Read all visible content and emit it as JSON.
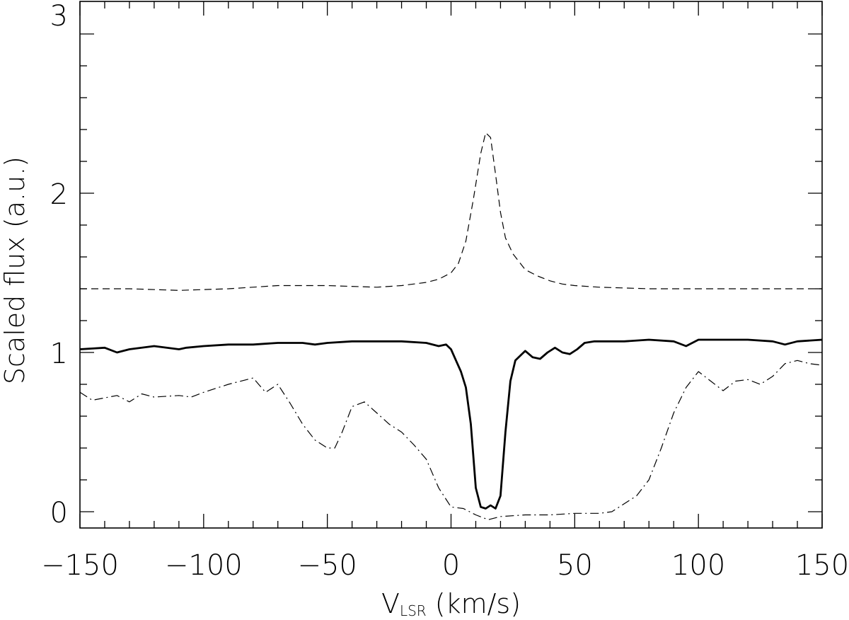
{
  "chart_data": {
    "type": "line",
    "xlabel": {
      "main": "V",
      "sub": "LSR",
      "unit": " (km/s)"
    },
    "ylabel": "Scaled flux (a.u.)",
    "xlim": [
      -150,
      150
    ],
    "ylim": [
      -0.1,
      3
    ],
    "xticks": [
      -150,
      -100,
      -50,
      0,
      50,
      100,
      150
    ],
    "xtick_labels": [
      "−150",
      "−100",
      "−50",
      "0",
      "50",
      "100",
      "150"
    ],
    "yticks": [
      0,
      1,
      2,
      3
    ],
    "ytick_labels": [
      "0",
      "1",
      "2",
      "3"
    ],
    "grid": false,
    "series": [
      {
        "style": "dashed",
        "x": [
          -150,
          -130,
          -110,
          -90,
          -70,
          -50,
          -30,
          -20,
          -10,
          -5,
          0,
          3,
          6,
          9,
          12,
          14,
          16,
          18,
          20,
          22,
          25,
          30,
          35,
          40,
          45,
          50,
          60,
          80,
          100,
          120,
          150
        ],
        "y": [
          1.4,
          1.4,
          1.39,
          1.4,
          1.42,
          1.42,
          1.41,
          1.42,
          1.44,
          1.46,
          1.5,
          1.56,
          1.7,
          1.96,
          2.25,
          2.38,
          2.35,
          2.12,
          1.88,
          1.72,
          1.62,
          1.52,
          1.48,
          1.45,
          1.43,
          1.42,
          1.41,
          1.4,
          1.4,
          1.4,
          1.4
        ]
      },
      {
        "style": "solid",
        "x": [
          -150,
          -140,
          -135,
          -130,
          -120,
          -110,
          -107,
          -100,
          -90,
          -80,
          -70,
          -60,
          -55,
          -50,
          -40,
          -30,
          -20,
          -10,
          -5,
          -2,
          0,
          2,
          4,
          6,
          8,
          10,
          12,
          14,
          16,
          18,
          20,
          22,
          24,
          26,
          30,
          33,
          36,
          39,
          42,
          45,
          48,
          51,
          54,
          58,
          70,
          80,
          90,
          95,
          100,
          110,
          120,
          130,
          135,
          140,
          150
        ],
        "y": [
          1.02,
          1.03,
          1.0,
          1.02,
          1.04,
          1.02,
          1.03,
          1.04,
          1.05,
          1.05,
          1.06,
          1.06,
          1.05,
          1.06,
          1.07,
          1.07,
          1.07,
          1.06,
          1.04,
          1.05,
          1.02,
          0.95,
          0.88,
          0.78,
          0.55,
          0.15,
          0.03,
          0.02,
          0.04,
          0.02,
          0.1,
          0.5,
          0.82,
          0.95,
          1.01,
          0.97,
          0.96,
          1.0,
          1.03,
          1.0,
          0.99,
          1.02,
          1.06,
          1.07,
          1.07,
          1.08,
          1.07,
          1.04,
          1.08,
          1.08,
          1.08,
          1.07,
          1.05,
          1.07,
          1.08
        ]
      },
      {
        "style": "dash-dot",
        "x": [
          -150,
          -145,
          -135,
          -130,
          -125,
          -120,
          -110,
          -105,
          -100,
          -90,
          -80,
          -75,
          -70,
          -65,
          -60,
          -55,
          -50,
          -47,
          -44,
          -40,
          -35,
          -30,
          -25,
          -20,
          -15,
          -10,
          -5,
          0,
          5,
          10,
          15,
          20,
          30,
          40,
          50,
          60,
          65,
          70,
          75,
          80,
          85,
          90,
          95,
          100,
          105,
          110,
          115,
          120,
          125,
          130,
          135,
          140,
          145,
          150
        ],
        "y": [
          0.75,
          0.7,
          0.73,
          0.69,
          0.74,
          0.72,
          0.73,
          0.72,
          0.75,
          0.8,
          0.84,
          0.75,
          0.8,
          0.68,
          0.55,
          0.45,
          0.4,
          0.4,
          0.5,
          0.66,
          0.69,
          0.62,
          0.55,
          0.5,
          0.42,
          0.33,
          0.15,
          0.03,
          0.02,
          -0.02,
          -0.05,
          -0.03,
          -0.02,
          -0.02,
          -0.01,
          -0.01,
          0.0,
          0.05,
          0.1,
          0.2,
          0.4,
          0.62,
          0.78,
          0.88,
          0.82,
          0.76,
          0.82,
          0.83,
          0.8,
          0.85,
          0.93,
          0.95,
          0.93,
          0.92
        ]
      }
    ]
  }
}
